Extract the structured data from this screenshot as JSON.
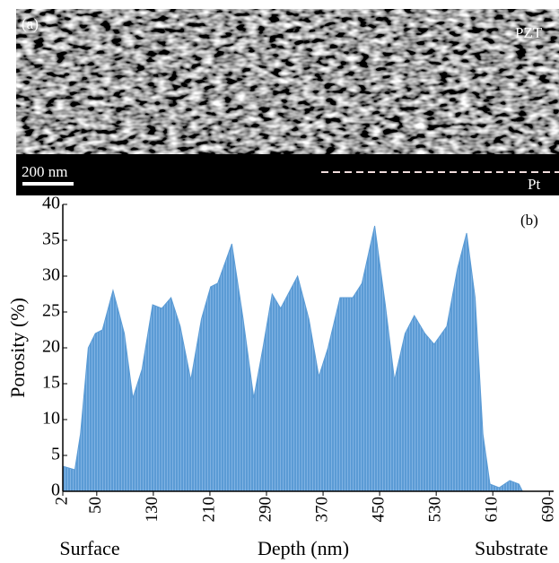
{
  "micrograph": {
    "panel_label": "(a)",
    "material": "PZT",
    "scale_bar": "200 nm",
    "electrode": "Pt"
  },
  "chart_data": {
    "type": "area",
    "panel_label": "(b)",
    "x_label": "Depth (nm)",
    "y_label": "Porosity (%)",
    "annotations": [
      "Surface",
      "Substrate"
    ],
    "color": "#5b9bd5",
    "x": [
      2,
      19,
      27,
      38,
      48,
      58,
      73,
      89,
      101,
      114,
      129,
      142,
      155,
      168,
      183,
      198,
      211,
      221,
      241,
      257,
      272,
      285,
      298,
      310,
      334,
      350,
      364,
      377,
      394,
      412,
      425,
      443,
      458,
      471,
      486,
      499,
      514,
      527,
      545,
      560,
      573,
      585,
      596,
      606,
      619,
      634,
      647,
      652
    ],
    "values": [
      3.5,
      3,
      8,
      20,
      22,
      22.5,
      28,
      22,
      13,
      17,
      26,
      25.5,
      27,
      23,
      15.5,
      24,
      28.5,
      29,
      34.5,
      24,
      13,
      20,
      27.5,
      25.5,
      30,
      24,
      16,
      20,
      27,
      27,
      29,
      37,
      26,
      15.5,
      22,
      24.5,
      22,
      20.5,
      23,
      31,
      36,
      27,
      8,
      1,
      0.5,
      1.5,
      1,
      0
    ],
    "xlim": [
      2,
      696
    ],
    "ylim": [
      0,
      40
    ],
    "xticks": [
      2,
      50,
      130,
      210,
      290,
      370,
      450,
      530,
      610,
      690
    ],
    "yticks": [
      0,
      5,
      10,
      15,
      20,
      25,
      30,
      35,
      40
    ]
  }
}
